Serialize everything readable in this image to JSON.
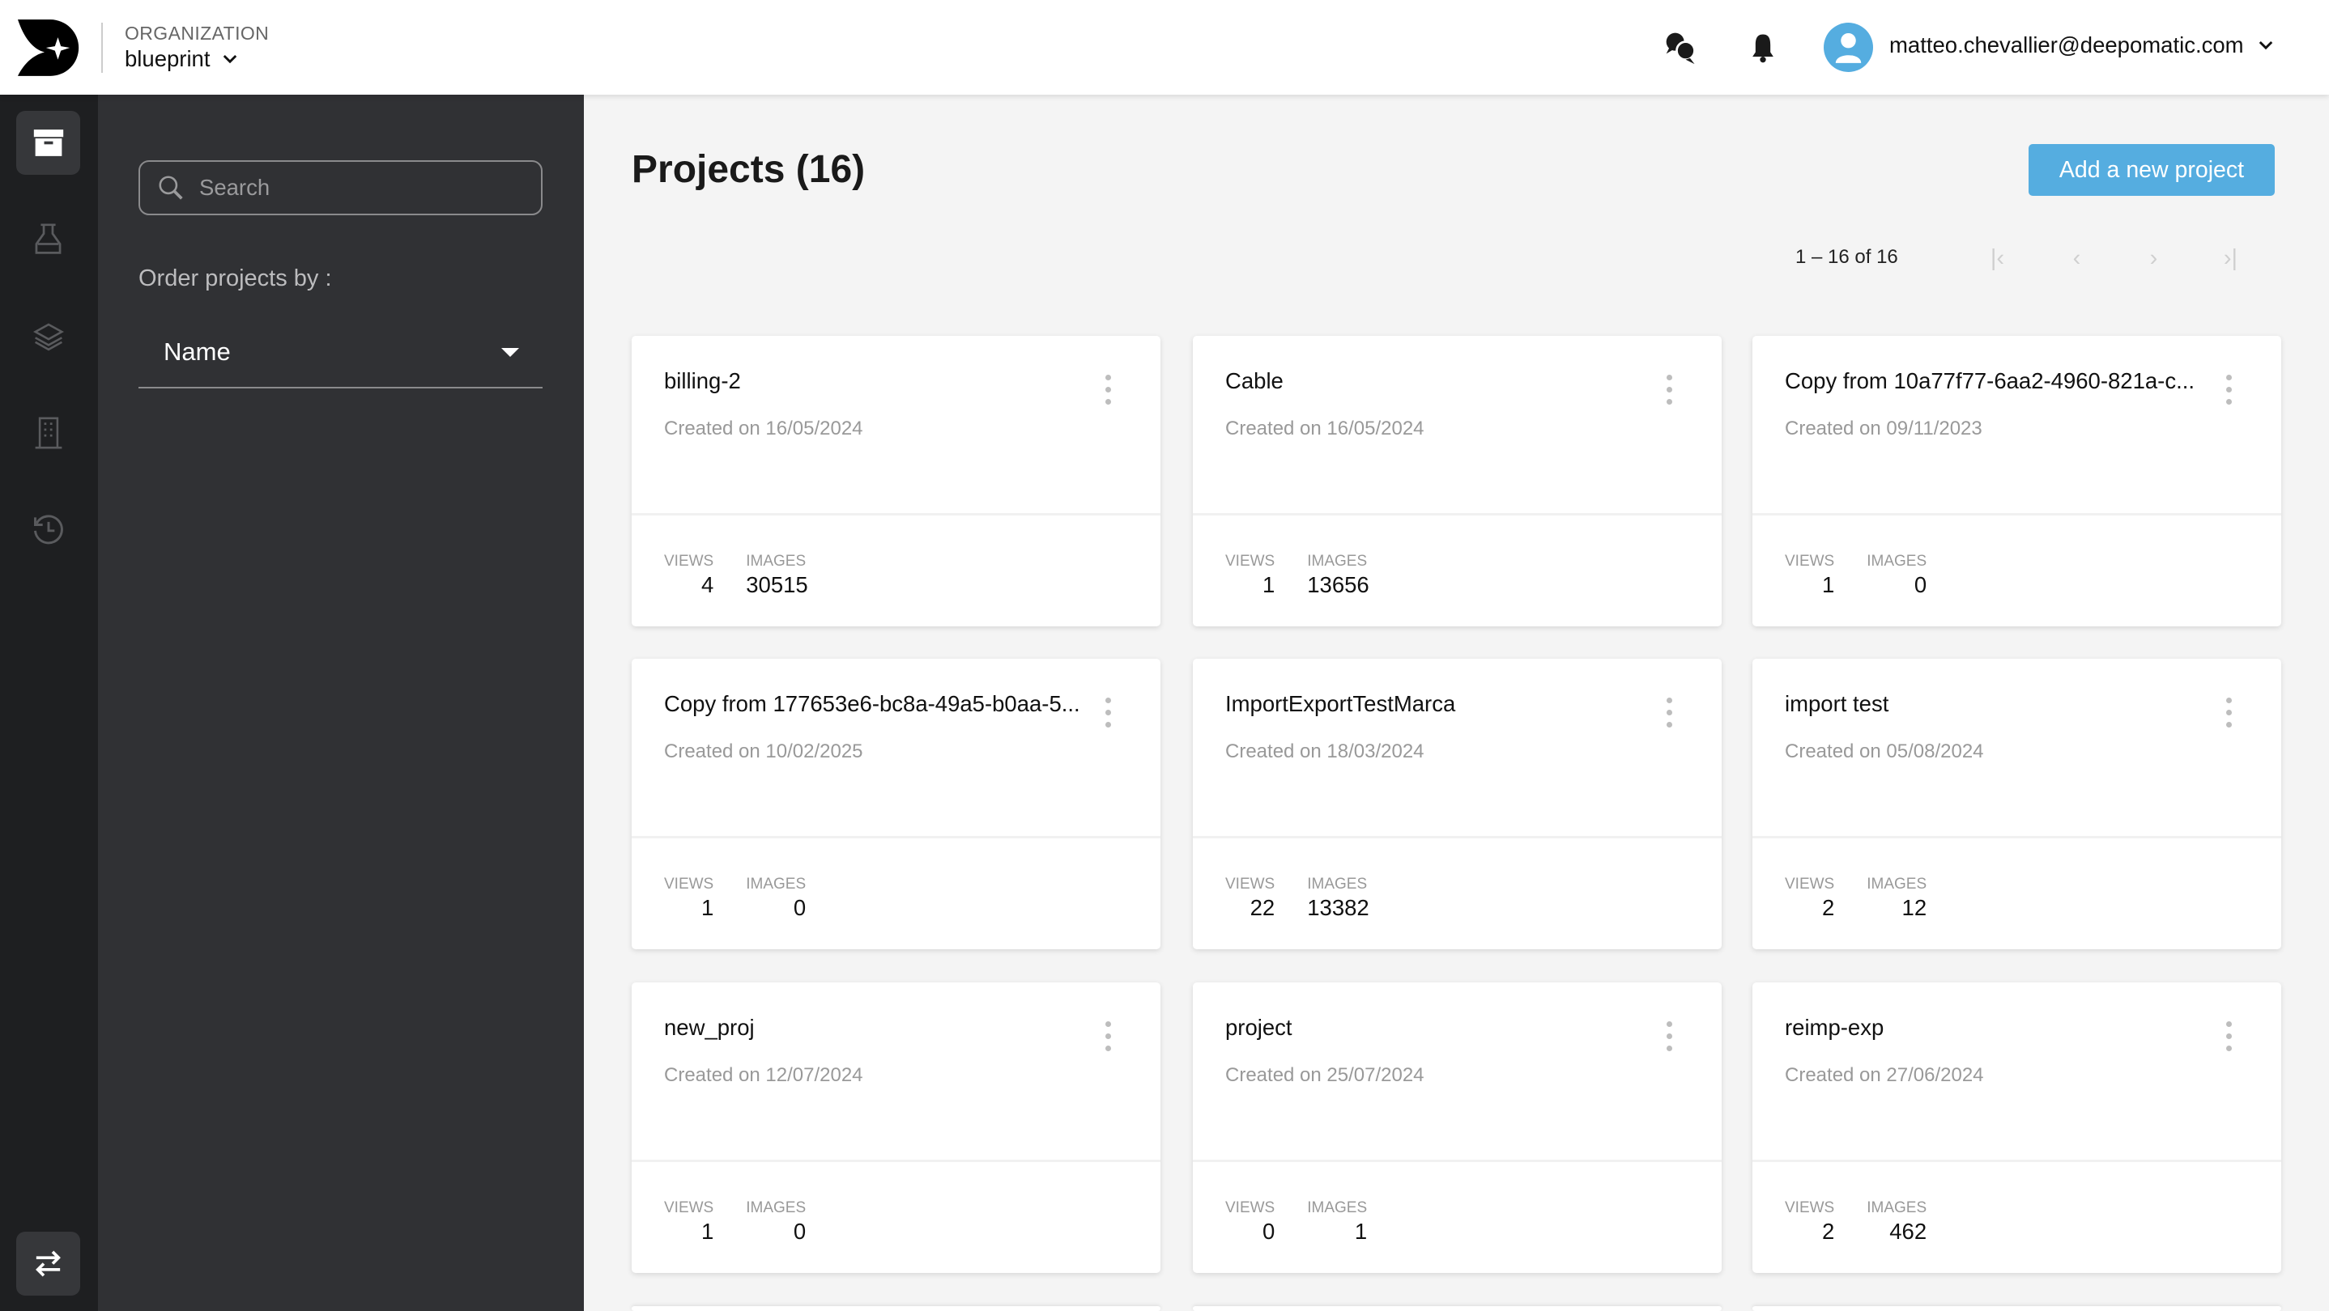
{
  "header": {
    "org_label": "ORGANIZATION",
    "org_name": "blueprint",
    "user_email": "matteo.chevallier@deepomatic.com",
    "icons": [
      "chat-icon",
      "bell-icon",
      "user-avatar-icon"
    ]
  },
  "rail": {
    "items": [
      "projects-box-icon",
      "flask-icon",
      "layers-icon",
      "building-icon",
      "history-icon"
    ],
    "bottom": "swap-arrows-icon"
  },
  "panel": {
    "search_placeholder": "Search",
    "order_label": "Order projects by :",
    "order_value": "Name"
  },
  "main": {
    "title": "Projects (16)",
    "add_button": "Add a new project",
    "pagination": "1 – 16 of 16",
    "accent": "#55ade0",
    "views_label": "VIEWS",
    "images_label": "IMAGES",
    "projects": [
      {
        "name": "billing-2",
        "date": "Created on 16/05/2024",
        "views": "4",
        "images": "30515"
      },
      {
        "name": "Cable",
        "date": "Created on 16/05/2024",
        "views": "1",
        "images": "13656"
      },
      {
        "name": "Copy from 10a77f77-6aa2-4960-821a-c...",
        "date": "Created on 09/11/2023",
        "views": "1",
        "images": "0"
      },
      {
        "name": "Copy from 177653e6-bc8a-49a5-b0aa-5...",
        "date": "Created on 10/02/2025",
        "views": "1",
        "images": "0"
      },
      {
        "name": "ImportExportTestMarca",
        "date": "Created on 18/03/2024",
        "views": "22",
        "images": "13382"
      },
      {
        "name": "import test",
        "date": "Created on 05/08/2024",
        "views": "2",
        "images": "12"
      },
      {
        "name": "new_proj",
        "date": "Created on 12/07/2024",
        "views": "1",
        "images": "0"
      },
      {
        "name": "project",
        "date": "Created on 25/07/2024",
        "views": "0",
        "images": "1"
      },
      {
        "name": "reimp-exp",
        "date": "Created on 27/06/2024",
        "views": "2",
        "images": "462"
      }
    ]
  }
}
